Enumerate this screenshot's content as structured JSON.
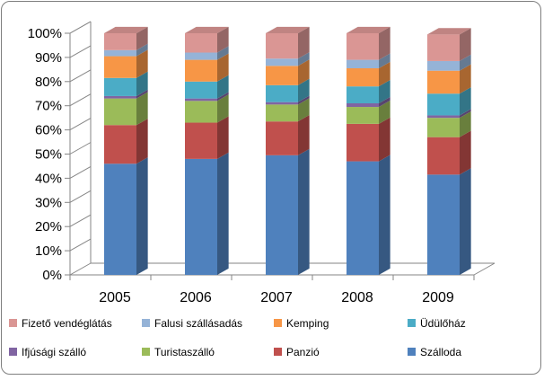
{
  "chart_data": {
    "type": "bar",
    "stacked": true,
    "percent_stacked": true,
    "three_d": true,
    "categories": [
      "2005",
      "2006",
      "2007",
      "2008",
      "2009"
    ],
    "ylim": [
      0,
      100
    ],
    "y_ticks": [
      "0%",
      "10%",
      "20%",
      "30%",
      "40%",
      "50%",
      "60%",
      "70%",
      "80%",
      "90%",
      "100%"
    ],
    "grid": false,
    "legend_position": "bottom",
    "series": [
      {
        "name": "Szálloda",
        "color": "#4F81BD",
        "values": [
          46,
          48,
          49.5,
          47,
          41.5
        ]
      },
      {
        "name": "Panzió",
        "color": "#C0504D",
        "values": [
          16,
          15,
          14,
          15.5,
          15.5
        ]
      },
      {
        "name": "Turistaszálló",
        "color": "#9BBB59",
        "values": [
          11,
          9,
          7,
          7,
          8
        ]
      },
      {
        "name": "Ifjúsági szálló",
        "color": "#8064A2",
        "values": [
          1,
          1,
          1,
          1.5,
          1
        ]
      },
      {
        "name": "Üdülőház",
        "color": "#4BACC6",
        "values": [
          7.5,
          7,
          7,
          7,
          9
        ]
      },
      {
        "name": "Kemping",
        "color": "#F79646",
        "values": [
          9,
          9,
          8,
          7.5,
          9.5
        ]
      },
      {
        "name": "Falusi szállásadás",
        "color": "#95B3D7",
        "values": [
          2.5,
          3,
          3,
          3.5,
          4
        ]
      },
      {
        "name": "Fizető vendéglátás",
        "color": "#DA9694",
        "values": [
          7,
          8,
          10.5,
          11,
          11
        ]
      }
    ],
    "legend_order": [
      "Fizető vendéglátás",
      "Falusi szállásadás",
      "Kemping",
      "Üdülőház",
      "Ifjúsági szálló",
      "Turistaszálló",
      "Panzió",
      "Szálloda"
    ]
  }
}
